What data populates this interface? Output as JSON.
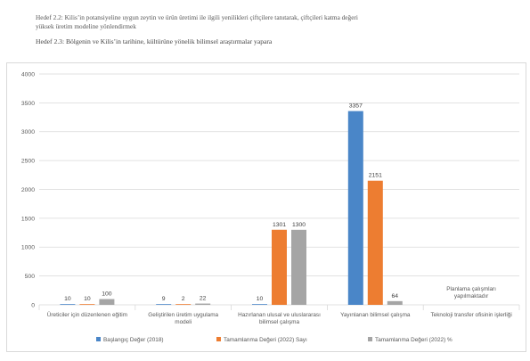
{
  "document": {
    "para_line1": "Hedef 2.2: Kilis’in potansiyeline uygun zeytin ve ürün üretimi ile ilgili yenilikleri çiftçilere tanıtarak, çiftçileri katma değeri",
    "para_line2": "yüksek üretim modeline yönlendirmek",
    "heading": "Hedef 2.3: Bölgenin ve Kilis’in tarihine, kültürüne yönelik bilimsel araştırmalar yapara"
  },
  "chart_data": {
    "type": "bar",
    "title": "",
    "xlabel": "",
    "ylabel": "",
    "ylim": [
      0,
      4000
    ],
    "yticks": [
      0,
      500,
      1000,
      1500,
      2000,
      2500,
      3000,
      3500,
      4000
    ],
    "grid": true,
    "legend_position": "bottom",
    "categories": [
      [
        "Üreticiler için düzenlenen eğitim"
      ],
      [
        "Geliştirilen üretim uygulama",
        "modeli"
      ],
      [
        "Hazırlanan ulusal ve uluslararası",
        "bilimsel çalışma"
      ],
      [
        "Yayınlanan bilimsel çalışma"
      ],
      [
        "Teknoloji transfer ofisinin işlerliği"
      ]
    ],
    "series": [
      {
        "name": "Başlangıç Değer (2018)",
        "color": "#4a86c8",
        "values": [
          10,
          9,
          10,
          3357,
          null
        ]
      },
      {
        "name": "Tamamlanma Değeri (2022) Sayı",
        "color": "#ed7d31",
        "values": [
          10,
          2,
          1301,
          2151,
          null
        ]
      },
      {
        "name": "Tamamlanma Değeri (2022) %",
        "color": "#a5a5a5",
        "values": [
          100,
          22,
          1300,
          64,
          null
        ]
      }
    ],
    "annotations": [
      {
        "category_index": 4,
        "lines": [
          "Planlama çalışmları",
          "yapılmaktadır"
        ]
      }
    ]
  }
}
